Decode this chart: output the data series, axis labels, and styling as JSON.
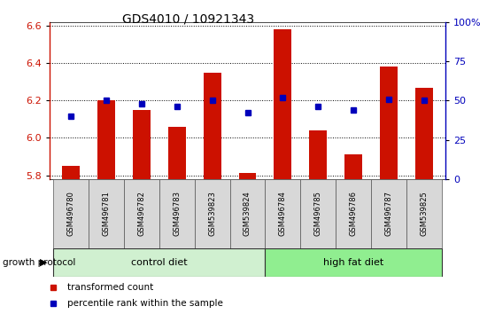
{
  "title": "GDS4010 / 10921343",
  "samples": [
    "GSM496780",
    "GSM496781",
    "GSM496782",
    "GSM496783",
    "GSM539823",
    "GSM539824",
    "GSM496784",
    "GSM496785",
    "GSM496786",
    "GSM496787",
    "GSM539825"
  ],
  "red_values": [
    5.85,
    6.2,
    6.15,
    6.06,
    6.35,
    5.81,
    6.58,
    6.04,
    5.91,
    6.38,
    6.27
  ],
  "blue_values": [
    0.4,
    0.5,
    0.48,
    0.46,
    0.5,
    0.42,
    0.52,
    0.46,
    0.44,
    0.51,
    0.5
  ],
  "ylim_left": [
    5.78,
    6.62
  ],
  "ylim_right": [
    0.0,
    1.0
  ],
  "yticks_left": [
    5.8,
    6.0,
    6.2,
    6.4,
    6.6
  ],
  "yticks_right": [
    0.0,
    0.25,
    0.5,
    0.75,
    1.0
  ],
  "ytick_labels_right": [
    "0",
    "25",
    "50",
    "75",
    "100%"
  ],
  "groups": [
    {
      "label": "control diet",
      "start": 0,
      "end": 6,
      "color": "#d0f0d0"
    },
    {
      "label": "high fat diet",
      "start": 6,
      "end": 11,
      "color": "#90ee90"
    }
  ],
  "group_label_prefix": "growth protocol",
  "legend_red": "transformed count",
  "legend_blue": "percentile rank within the sample",
  "bar_color": "#cc1100",
  "dot_color": "#0000bb",
  "bar_bottom": 5.78,
  "right_axis_color": "#0000bb",
  "left_axis_color": "#cc1100"
}
